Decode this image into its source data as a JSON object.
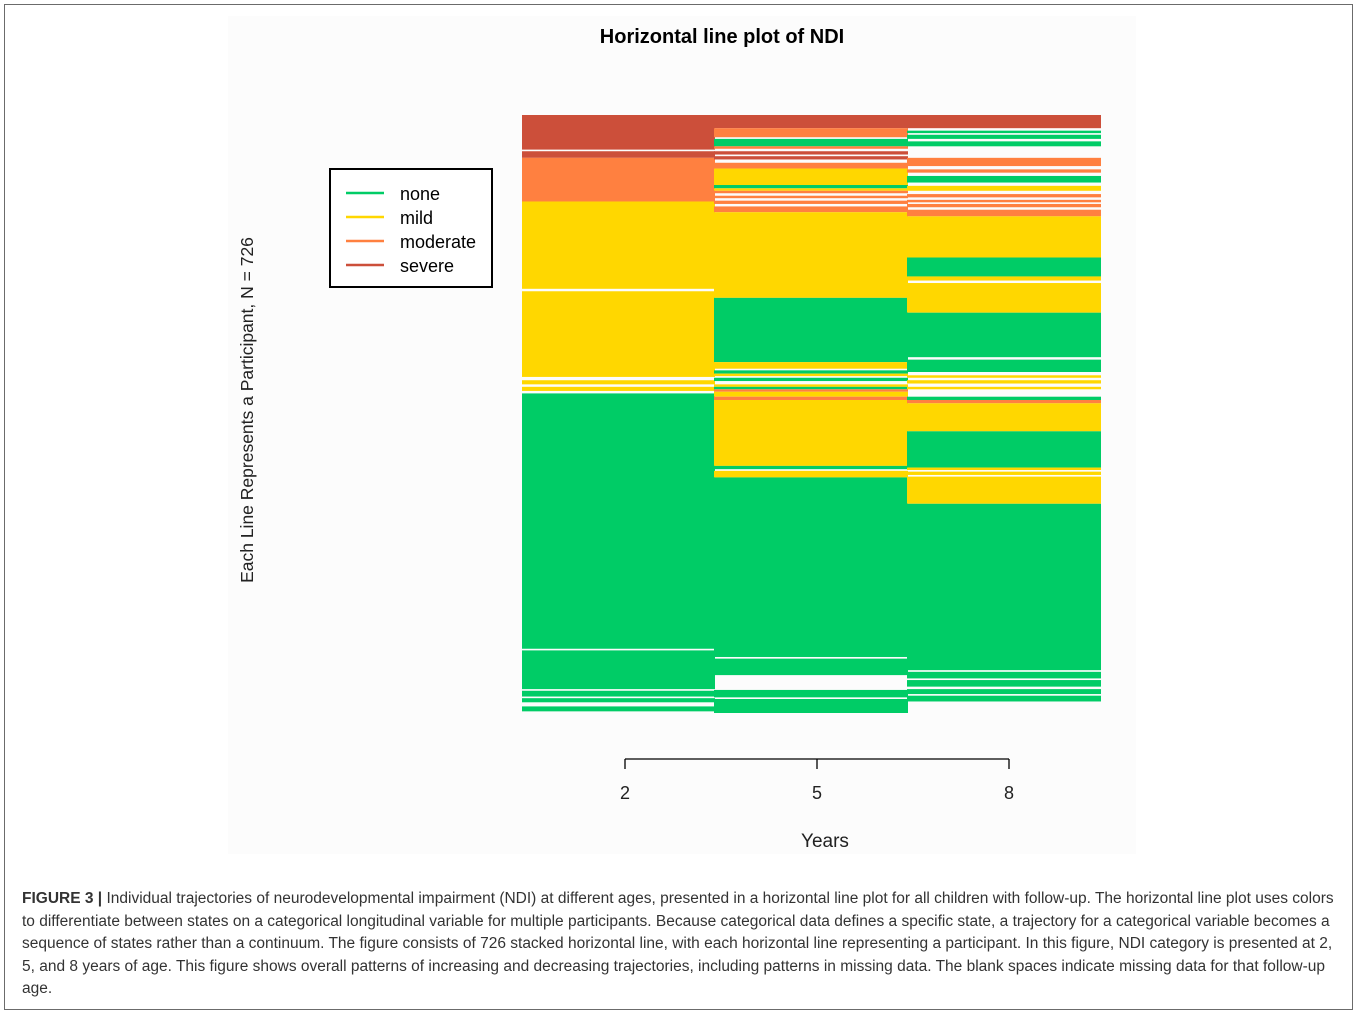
{
  "caption": {
    "label": "FIGURE 3 |",
    "text": "Individual trajectories of neurodevelopmental impairment (NDI) at different ages, presented in a horizontal line plot for all children with follow-up. The horizontal line plot uses colors to differentiate between states on a categorical longitudinal variable for multiple participants. Because categorical data defines a specific state, a trajectory for a categorical variable becomes a sequence of states rather than a continuum. The figure consists of 726 stacked horizontal line, with each horizontal line representing a participant. In this figure, NDI category is presented at 2, 5, and 8 years of age. This figure shows overall patterns of increasing and decreasing trajectories, including patterns in missing data. The blank spaces indicate missing data for that follow-up age."
  },
  "chart_data": {
    "type": "horizontal line plot",
    "title": "Horizontal line plot of NDI",
    "xlabel": "Years",
    "ylabel": "Each Line Represents a Participant, N = 726",
    "x_ticks": [
      "2",
      "5",
      "8"
    ],
    "n_participants": 726,
    "legend": {
      "placement": "top-left",
      "entries": [
        {
          "label": "none",
          "color": "#00CC66"
        },
        {
          "label": "mild",
          "color": "#FFD700"
        },
        {
          "label": "moderate",
          "color": "#FF8040"
        },
        {
          "label": "severe",
          "color": "#CC4F3A"
        }
      ]
    },
    "columns": [
      {
        "year": "2",
        "segments": [
          {
            "from": 0,
            "to": 42,
            "state": "severe"
          },
          {
            "from": 42,
            "to": 44,
            "state": "missing"
          },
          {
            "from": 44,
            "to": 52,
            "state": "severe"
          },
          {
            "from": 52,
            "to": 105,
            "state": "moderate"
          },
          {
            "from": 105,
            "to": 211,
            "state": "mild"
          },
          {
            "from": 211,
            "to": 214,
            "state": "missing"
          },
          {
            "from": 214,
            "to": 318,
            "state": "mild"
          },
          {
            "from": 318,
            "to": 322,
            "state": "missing"
          },
          {
            "from": 322,
            "to": 327,
            "state": "mild"
          },
          {
            "from": 327,
            "to": 330,
            "state": "missing"
          },
          {
            "from": 330,
            "to": 335,
            "state": "mild"
          },
          {
            "from": 335,
            "to": 338,
            "state": "missing"
          },
          {
            "from": 338,
            "to": 648,
            "state": "none"
          },
          {
            "from": 648,
            "to": 650,
            "state": "missing"
          },
          {
            "from": 650,
            "to": 697,
            "state": "none"
          },
          {
            "from": 697,
            "to": 699,
            "state": "missing"
          },
          {
            "from": 699,
            "to": 706,
            "state": "none"
          },
          {
            "from": 706,
            "to": 708,
            "state": "missing"
          },
          {
            "from": 708,
            "to": 713,
            "state": "none"
          },
          {
            "from": 713,
            "to": 718,
            "state": "missing"
          },
          {
            "from": 718,
            "to": 724,
            "state": "none"
          },
          {
            "from": 724,
            "to": 726,
            "state": "missing"
          }
        ]
      },
      {
        "year": "5",
        "segments": [
          {
            "from": 0,
            "to": 16,
            "state": "severe"
          },
          {
            "from": 16,
            "to": 27,
            "state": "moderate"
          },
          {
            "from": 27,
            "to": 29,
            "state": "missing"
          },
          {
            "from": 29,
            "to": 38,
            "state": "none"
          },
          {
            "from": 38,
            "to": 41,
            "state": "moderate"
          },
          {
            "from": 41,
            "to": 44,
            "state": "missing"
          },
          {
            "from": 44,
            "to": 48,
            "state": "severe"
          },
          {
            "from": 48,
            "to": 50,
            "state": "missing"
          },
          {
            "from": 50,
            "to": 54,
            "state": "severe"
          },
          {
            "from": 54,
            "to": 58,
            "state": "missing"
          },
          {
            "from": 58,
            "to": 65,
            "state": "moderate"
          },
          {
            "from": 65,
            "to": 85,
            "state": "mild"
          },
          {
            "from": 85,
            "to": 89,
            "state": "none"
          },
          {
            "from": 89,
            "to": 92,
            "state": "mild"
          },
          {
            "from": 92,
            "to": 95,
            "state": "moderate"
          },
          {
            "from": 95,
            "to": 98,
            "state": "missing"
          },
          {
            "from": 98,
            "to": 101,
            "state": "moderate"
          },
          {
            "from": 101,
            "to": 104,
            "state": "missing"
          },
          {
            "from": 104,
            "to": 108,
            "state": "moderate"
          },
          {
            "from": 108,
            "to": 111,
            "state": "missing"
          },
          {
            "from": 111,
            "to": 118,
            "state": "moderate"
          },
          {
            "from": 118,
            "to": 222,
            "state": "mild"
          },
          {
            "from": 222,
            "to": 300,
            "state": "none"
          },
          {
            "from": 300,
            "to": 308,
            "state": "mild"
          },
          {
            "from": 308,
            "to": 310,
            "state": "missing"
          },
          {
            "from": 310,
            "to": 314,
            "state": "none"
          },
          {
            "from": 314,
            "to": 317,
            "state": "mild"
          },
          {
            "from": 317,
            "to": 319,
            "state": "missing"
          },
          {
            "from": 319,
            "to": 323,
            "state": "none"
          },
          {
            "from": 323,
            "to": 327,
            "state": "missing"
          },
          {
            "from": 327,
            "to": 330,
            "state": "mild"
          },
          {
            "from": 330,
            "to": 333,
            "state": "none"
          },
          {
            "from": 333,
            "to": 336,
            "state": "moderate"
          },
          {
            "from": 336,
            "to": 342,
            "state": "mild"
          },
          {
            "from": 342,
            "to": 346,
            "state": "moderate"
          },
          {
            "from": 346,
            "to": 426,
            "state": "mild"
          },
          {
            "from": 426,
            "to": 430,
            "state": "none"
          },
          {
            "from": 430,
            "to": 432,
            "state": "missing"
          },
          {
            "from": 432,
            "to": 440,
            "state": "mild"
          },
          {
            "from": 440,
            "to": 658,
            "state": "none"
          },
          {
            "from": 658,
            "to": 660,
            "state": "missing"
          },
          {
            "from": 660,
            "to": 680,
            "state": "none"
          },
          {
            "from": 680,
            "to": 698,
            "state": "missing"
          },
          {
            "from": 698,
            "to": 707,
            "state": "none"
          },
          {
            "from": 707,
            "to": 709,
            "state": "missing"
          },
          {
            "from": 709,
            "to": 726,
            "state": "none"
          }
        ]
      },
      {
        "year": "8",
        "segments": [
          {
            "from": 0,
            "to": 16,
            "state": "severe"
          },
          {
            "from": 16,
            "to": 19,
            "state": "missing"
          },
          {
            "from": 19,
            "to": 22,
            "state": "none"
          },
          {
            "from": 22,
            "to": 24,
            "state": "missing"
          },
          {
            "from": 24,
            "to": 29,
            "state": "none"
          },
          {
            "from": 29,
            "to": 32,
            "state": "missing"
          },
          {
            "from": 32,
            "to": 38,
            "state": "none"
          },
          {
            "from": 38,
            "to": 52,
            "state": "missing"
          },
          {
            "from": 52,
            "to": 62,
            "state": "moderate"
          },
          {
            "from": 62,
            "to": 66,
            "state": "missing"
          },
          {
            "from": 66,
            "to": 70,
            "state": "moderate"
          },
          {
            "from": 70,
            "to": 74,
            "state": "missing"
          },
          {
            "from": 74,
            "to": 82,
            "state": "none"
          },
          {
            "from": 82,
            "to": 86,
            "state": "missing"
          },
          {
            "from": 86,
            "to": 92,
            "state": "mild"
          },
          {
            "from": 92,
            "to": 96,
            "state": "missing"
          },
          {
            "from": 96,
            "to": 100,
            "state": "moderate"
          },
          {
            "from": 100,
            "to": 103,
            "state": "missing"
          },
          {
            "from": 103,
            "to": 106,
            "state": "moderate"
          },
          {
            "from": 106,
            "to": 108,
            "state": "missing"
          },
          {
            "from": 108,
            "to": 112,
            "state": "moderate"
          },
          {
            "from": 112,
            "to": 115,
            "state": "missing"
          },
          {
            "from": 115,
            "to": 123,
            "state": "moderate"
          },
          {
            "from": 123,
            "to": 173,
            "state": "mild"
          },
          {
            "from": 173,
            "to": 196,
            "state": "none"
          },
          {
            "from": 196,
            "to": 201,
            "state": "mild"
          },
          {
            "from": 201,
            "to": 204,
            "state": "missing"
          },
          {
            "from": 204,
            "to": 240,
            "state": "mild"
          },
          {
            "from": 240,
            "to": 294,
            "state": "none"
          },
          {
            "from": 294,
            "to": 297,
            "state": "missing"
          },
          {
            "from": 297,
            "to": 312,
            "state": "none"
          },
          {
            "from": 312,
            "to": 316,
            "state": "missing"
          },
          {
            "from": 316,
            "to": 319,
            "state": "mild"
          },
          {
            "from": 319,
            "to": 322,
            "state": "missing"
          },
          {
            "from": 322,
            "to": 326,
            "state": "mild"
          },
          {
            "from": 326,
            "to": 330,
            "state": "missing"
          },
          {
            "from": 330,
            "to": 333,
            "state": "mild"
          },
          {
            "from": 333,
            "to": 342,
            "state": "missing"
          },
          {
            "from": 342,
            "to": 346,
            "state": "none"
          },
          {
            "from": 346,
            "to": 350,
            "state": "moderate"
          },
          {
            "from": 350,
            "to": 384,
            "state": "mild"
          },
          {
            "from": 384,
            "to": 428,
            "state": "none"
          },
          {
            "from": 428,
            "to": 431,
            "state": "mild"
          },
          {
            "from": 431,
            "to": 433,
            "state": "missing"
          },
          {
            "from": 433,
            "to": 437,
            "state": "mild"
          },
          {
            "from": 437,
            "to": 439,
            "state": "missing"
          },
          {
            "from": 439,
            "to": 472,
            "state": "mild"
          },
          {
            "from": 472,
            "to": 674,
            "state": "none"
          },
          {
            "from": 674,
            "to": 676,
            "state": "missing"
          },
          {
            "from": 676,
            "to": 684,
            "state": "none"
          },
          {
            "from": 684,
            "to": 686,
            "state": "missing"
          },
          {
            "from": 686,
            "to": 694,
            "state": "none"
          },
          {
            "from": 694,
            "to": 697,
            "state": "missing"
          },
          {
            "from": 697,
            "to": 703,
            "state": "none"
          },
          {
            "from": 703,
            "to": 705,
            "state": "missing"
          },
          {
            "from": 705,
            "to": 712,
            "state": "none"
          },
          {
            "from": 712,
            "to": 726,
            "state": "missing"
          }
        ]
      }
    ]
  }
}
